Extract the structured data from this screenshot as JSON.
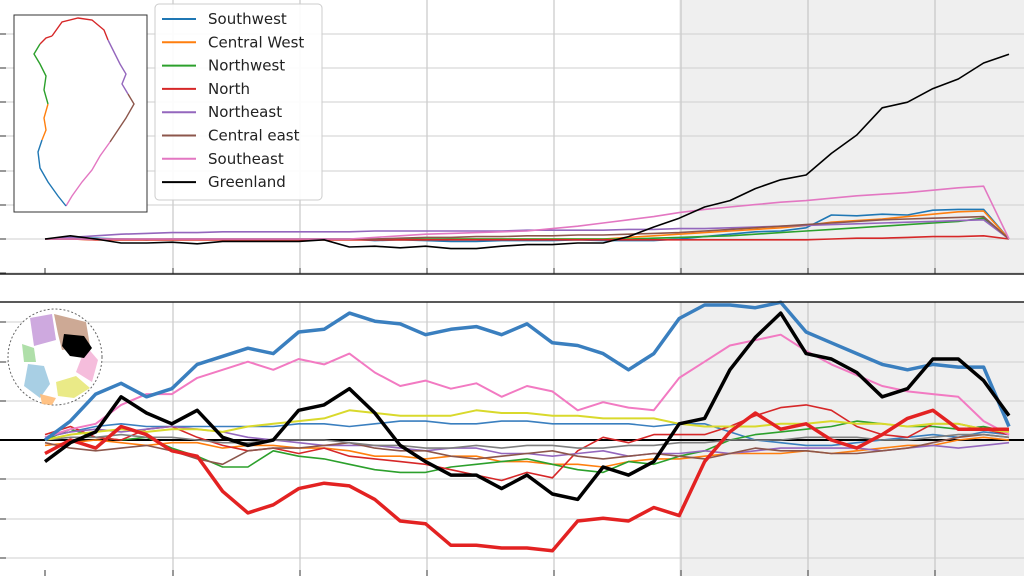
{
  "chart_data": [
    {
      "type": "line",
      "panel": "top",
      "title": "",
      "xlabel": "",
      "ylabel": "",
      "x": [
        0,
        1,
        2,
        3,
        4,
        5,
        6,
        7,
        8,
        9,
        10,
        11,
        12,
        13,
        14,
        15,
        16,
        17,
        18,
        19,
        20,
        21,
        22,
        23,
        24,
        25,
        26,
        27,
        28,
        29,
        30,
        31,
        32,
        33,
        34,
        35,
        36,
        37,
        38
      ],
      "xlim": [
        0,
        38
      ],
      "ylim": [
        -4,
        22
      ],
      "shaded_x_range": [
        25,
        38
      ],
      "grid": true,
      "legend_position": "upper-left",
      "has_map_inset": true,
      "series": [
        {
          "name": "Southwest",
          "color": "#1f77b4",
          "width": 1.6,
          "values": [
            0,
            0.1,
            0.1,
            0,
            -0.1,
            0,
            0,
            0,
            0,
            0,
            0,
            0,
            0,
            -0.2,
            -0.1,
            -0.2,
            -0.3,
            -0.3,
            -0.2,
            -0.2,
            -0.2,
            -0.1,
            -0.2,
            -0.2,
            -0.2,
            0,
            0.3,
            0.6,
            0.9,
            1,
            1.4,
            3,
            2.9,
            3.1,
            3,
            3.6,
            3.7,
            3.7,
            0
          ]
        },
        {
          "name": "Central West",
          "color": "#ff7f0e",
          "width": 1.6,
          "values": [
            0,
            0,
            -0.1,
            -0.1,
            -0.1,
            -0.1,
            -0.1,
            -0.1,
            -0.1,
            -0.1,
            -0.1,
            -0.1,
            -0.1,
            -0.1,
            -0.1,
            -0.1,
            0,
            0,
            0,
            0,
            0,
            0,
            0,
            0.2,
            0.4,
            0.6,
            0.8,
            1,
            1.2,
            1.4,
            1.7,
            2.1,
            2.3,
            2.5,
            2.8,
            3.1,
            3.4,
            3.5,
            0
          ]
        },
        {
          "name": "Northwest",
          "color": "#2ca02c",
          "width": 1.6,
          "values": [
            0,
            0,
            0,
            0,
            0,
            0,
            0,
            0,
            0,
            0,
            0,
            0,
            0,
            0,
            0,
            0,
            0,
            0,
            0,
            0,
            0,
            0,
            0,
            0,
            0.1,
            0.2,
            0.3,
            0.4,
            0.6,
            0.8,
            1,
            1.2,
            1.4,
            1.6,
            1.8,
            2,
            2.2,
            2.6,
            0
          ]
        },
        {
          "name": "North",
          "color": "#d62728",
          "width": 1.6,
          "values": [
            0,
            0,
            -0.1,
            -0.1,
            -0.1,
            -0.1,
            -0.1,
            -0.1,
            -0.1,
            -0.1,
            -0.1,
            -0.1,
            -0.1,
            -0.1,
            -0.1,
            -0.1,
            -0.1,
            -0.1,
            -0.1,
            -0.1,
            -0.1,
            -0.1,
            -0.1,
            -0.1,
            -0.1,
            -0.1,
            -0.1,
            -0.1,
            -0.1,
            -0.1,
            -0.1,
            0,
            0.1,
            0.1,
            0.2,
            0.3,
            0.3,
            0.4,
            0
          ]
        },
        {
          "name": "Northeast",
          "color": "#9467bd",
          "width": 1.6,
          "values": [
            0,
            0.2,
            0.4,
            0.6,
            0.7,
            0.8,
            0.8,
            0.9,
            0.9,
            0.9,
            0.9,
            0.9,
            0.9,
            1,
            1,
            1,
            1,
            1,
            1,
            1.1,
            1.1,
            1.1,
            1.1,
            1.2,
            1.2,
            1.3,
            1.3,
            1.4,
            1.5,
            1.6,
            1.7,
            1.8,
            1.9,
            2,
            2.1,
            2.2,
            2.3,
            2.4,
            0
          ]
        },
        {
          "name": "Central east",
          "color": "#8c564b",
          "width": 1.6,
          "values": [
            0,
            0,
            0,
            0,
            0,
            0,
            0,
            0,
            0,
            0,
            0,
            0,
            0,
            0,
            0.1,
            0.2,
            0.2,
            0.3,
            0.3,
            0.4,
            0.4,
            0.5,
            0.5,
            0.6,
            0.7,
            0.8,
            1,
            1.2,
            1.4,
            1.6,
            1.8,
            2,
            2.2,
            2.4,
            2.5,
            2.6,
            2.7,
            2.8,
            0
          ]
        },
        {
          "name": "Southeast",
          "color": "#e377c2",
          "width": 1.6,
          "values": [
            0,
            0,
            0,
            0,
            0,
            0,
            0,
            0,
            0,
            0,
            0,
            0,
            0,
            0.2,
            0.4,
            0.6,
            0.7,
            0.8,
            0.9,
            1,
            1.3,
            1.6,
            2,
            2.4,
            2.8,
            3.3,
            3.7,
            4,
            4.3,
            4.6,
            4.8,
            5.1,
            5.4,
            5.6,
            5.8,
            6.1,
            6.4,
            6.6,
            0
          ]
        },
        {
          "name": "Greenland",
          "color": "#000000",
          "width": 1.6,
          "values": [
            0,
            0.4,
            0,
            -0.5,
            -0.5,
            -0.4,
            -0.6,
            -0.3,
            -0.3,
            -0.3,
            -0.3,
            -0.1,
            -1,
            -0.9,
            -1.1,
            -0.9,
            -1.2,
            -1.2,
            -0.9,
            -0.7,
            -0.7,
            -0.5,
            -0.5,
            0.3,
            1.5,
            2.6,
            4,
            4.8,
            6.3,
            7.4,
            8,
            10.7,
            13,
            16.4,
            17.1,
            18.8,
            20,
            22,
            23.1
          ]
        }
      ]
    },
    {
      "type": "line",
      "panel": "bottom",
      "title": "",
      "xlabel": "",
      "ylabel": "",
      "x": [
        0,
        1,
        2,
        3,
        4,
        5,
        6,
        7,
        8,
        9,
        10,
        11,
        12,
        13,
        14,
        15,
        16,
        17,
        18,
        19,
        20,
        21,
        22,
        23,
        24,
        25,
        26,
        27,
        28,
        29,
        30,
        31,
        32,
        33,
        34,
        35,
        36,
        37,
        38
      ],
      "xlim": [
        0,
        38
      ],
      "ylim": [
        -6,
        5
      ],
      "shaded_x_range": [
        25,
        38
      ],
      "zero_line": true,
      "grid": true,
      "has_map_inset": true,
      "series": [
        {
          "name": "",
          "color": "#3a7fbf",
          "width": 3.5,
          "values": [
            0,
            0.7,
            1.7,
            2.1,
            1.6,
            1.9,
            2.8,
            3.1,
            3.4,
            3.2,
            4,
            4.1,
            4.7,
            4.4,
            4.3,
            3.9,
            4.1,
            4.2,
            3.9,
            4.3,
            3.6,
            3.5,
            3.2,
            2.6,
            3.2,
            4.5,
            5,
            5,
            4.9,
            5.1,
            4,
            3.6,
            3.2,
            2.8,
            2.6,
            2.8,
            2.7,
            2.7,
            0.5
          ]
        },
        {
          "name": "",
          "color": "#e32222",
          "width": 3.5,
          "values": [
            -0.5,
            0,
            -0.3,
            0.5,
            0.2,
            -0.4,
            -0.6,
            -1.9,
            -2.7,
            -2.4,
            -1.8,
            -1.6,
            -1.7,
            -2.2,
            -3,
            -3.1,
            -3.9,
            -3.9,
            -4,
            -4,
            -4.1,
            -3,
            -2.9,
            -3,
            -2.5,
            -2.8,
            -0.8,
            0.3,
            1,
            0.4,
            0.6,
            0,
            -0.3,
            0.2,
            0.8,
            1.1,
            0.4,
            0.4,
            0.4
          ]
        },
        {
          "name": "",
          "color": "#000000",
          "width": 3.5,
          "values": [
            -0.8,
            -0.1,
            0.3,
            1.6,
            1,
            0.6,
            1.1,
            0.1,
            -0.2,
            0,
            1.1,
            1.3,
            1.9,
            1,
            -0.2,
            -0.8,
            -1.3,
            -1.3,
            -1.8,
            -1.3,
            -2,
            -2.2,
            -1,
            -1.3,
            -0.8,
            0.6,
            0.8,
            2.6,
            3.8,
            4.7,
            3.2,
            3,
            2.5,
            1.6,
            1.9,
            3,
            3,
            2.2,
            0.9
          ]
        },
        {
          "name": "",
          "color": "#f27ac2",
          "width": 2,
          "values": [
            0.1,
            0.4,
            0.6,
            1.3,
            1.7,
            1.7,
            2.3,
            2.6,
            2.9,
            2.6,
            3,
            2.8,
            3.2,
            2.5,
            2,
            2.2,
            1.9,
            2.1,
            1.6,
            2,
            1.8,
            1.1,
            1.4,
            1.2,
            1.1,
            2.3,
            2.9,
            3.5,
            3.7,
            3.9,
            3.3,
            2.8,
            2.4,
            2,
            1.8,
            1.7,
            1.6,
            0.7,
            0.2
          ]
        },
        {
          "name": "",
          "color": "#d9d92c",
          "width": 2,
          "values": [
            0,
            0.2,
            0.3,
            0.4,
            0.3,
            0.4,
            0.4,
            0.3,
            0.5,
            0.6,
            0.7,
            0.8,
            1.1,
            1,
            0.9,
            0.9,
            0.9,
            1.1,
            1,
            1,
            0.9,
            0.9,
            0.8,
            0.8,
            0.8,
            0.6,
            0.5,
            0.5,
            0.5,
            0.6,
            0.6,
            0.7,
            0.6,
            0.6,
            0.5,
            0.6,
            0.6,
            0.4,
            0.3
          ]
        },
        {
          "name": "",
          "color": "#3a7fbf",
          "width": 1.6,
          "values": [
            0.1,
            0.3,
            0.5,
            0.6,
            0.5,
            0.5,
            0.5,
            0.5,
            0.5,
            0.5,
            0.6,
            0.6,
            0.5,
            0.6,
            0.7,
            0.7,
            0.6,
            0.6,
            0.7,
            0.7,
            0.6,
            0.6,
            0.6,
            0.6,
            0.5,
            0.6,
            0.6,
            0.3,
            0,
            -0.1,
            -0.2,
            -0.2,
            -0.1,
            0,
            0.1,
            0.2,
            0.1,
            0.3,
            0.2
          ]
        },
        {
          "name": "",
          "color": "#ff7f0e",
          "width": 1.6,
          "values": [
            -0.2,
            -0.1,
            0,
            -0.1,
            -0.2,
            -0.1,
            -0.1,
            -0.3,
            -0.2,
            -0.2,
            -0.3,
            -0.3,
            -0.4,
            -0.6,
            -0.6,
            -0.7,
            -0.6,
            -0.6,
            -0.8,
            -0.8,
            -0.9,
            -0.9,
            -1,
            -0.8,
            -0.7,
            -0.7,
            -0.6,
            -0.5,
            -0.5,
            -0.5,
            -0.4,
            -0.5,
            -0.4,
            -0.3,
            -0.2,
            -0.2,
            0,
            0.1,
            0
          ]
        },
        {
          "name": "",
          "color": "#2ca02c",
          "width": 1.6,
          "values": [
            0,
            0.4,
            0.1,
            0,
            0.1,
            -0.3,
            -0.6,
            -1,
            -1,
            -0.4,
            -0.6,
            -0.7,
            -0.9,
            -1.1,
            -1.2,
            -1.2,
            -1,
            -0.9,
            -0.8,
            -0.7,
            -0.9,
            -1.1,
            -1.2,
            -0.8,
            -0.9,
            -0.6,
            -0.4,
            0,
            0.2,
            0.3,
            0.4,
            0.5,
            0.7,
            0.6,
            0.5,
            0.5,
            0.4,
            0.5,
            0.3
          ]
        },
        {
          "name": "",
          "color": "#d62728",
          "width": 1.6,
          "values": [
            0.2,
            0.5,
            0.1,
            0,
            0.4,
            0.5,
            0.1,
            -0.2,
            -0.4,
            -0.3,
            -0.5,
            -0.3,
            -0.6,
            -0.7,
            -0.8,
            -0.9,
            -1.1,
            -1.3,
            -1.5,
            -1.2,
            -1.4,
            -0.4,
            0.1,
            -0.1,
            0.2,
            0.2,
            0.2,
            0.5,
            0.9,
            1.2,
            1.3,
            1.1,
            0.5,
            0.2,
            0.1,
            0.6,
            0.6,
            0.4,
            0.2
          ]
        },
        {
          "name": "",
          "color": "#9467bd",
          "width": 1.6,
          "values": [
            0.1,
            0.3,
            0.4,
            0.3,
            0.4,
            0.5,
            0.4,
            0.3,
            0.1,
            0,
            -0.1,
            -0.2,
            -0.2,
            -0.2,
            -0.3,
            -0.4,
            -0.3,
            -0.3,
            -0.5,
            -0.5,
            -0.6,
            -0.5,
            -0.4,
            -0.6,
            -0.5,
            -0.5,
            -0.4,
            -0.5,
            -0.4,
            -0.3,
            -0.3,
            -0.3,
            -0.3,
            -0.4,
            -0.3,
            -0.2,
            -0.3,
            -0.2,
            -0.1
          ]
        },
        {
          "name": "",
          "color": "#8c564b",
          "width": 1.6,
          "values": [
            -0.1,
            -0.3,
            -0.4,
            -0.3,
            -0.2,
            -0.4,
            -0.7,
            -0.9,
            -0.4,
            -0.3,
            -0.3,
            -0.2,
            -0.1,
            -0.3,
            -0.4,
            -0.4,
            -0.6,
            -0.7,
            -0.6,
            -0.5,
            -0.4,
            -0.6,
            -0.7,
            -0.6,
            -0.5,
            -0.6,
            -0.7,
            -0.5,
            -0.3,
            -0.4,
            -0.4,
            -0.5,
            -0.5,
            -0.4,
            -0.3,
            -0.1,
            0.1,
            0.2,
            0.1
          ]
        },
        {
          "name": "",
          "color": "#7f7f7f",
          "width": 1.6,
          "values": [
            0,
            0.1,
            0.1,
            0.2,
            0.1,
            0.1,
            0,
            -0.1,
            -0.1,
            0,
            0,
            0,
            -0.1,
            -0.2,
            -0.2,
            -0.3,
            -0.3,
            -0.2,
            -0.3,
            -0.2,
            -0.2,
            -0.3,
            -0.3,
            -0.2,
            -0.2,
            -0.1,
            -0.1,
            0,
            0,
            0,
            0.1,
            0.1,
            0.1,
            0,
            0,
            0.1,
            0.2,
            0.2,
            0.1
          ]
        }
      ]
    }
  ]
}
